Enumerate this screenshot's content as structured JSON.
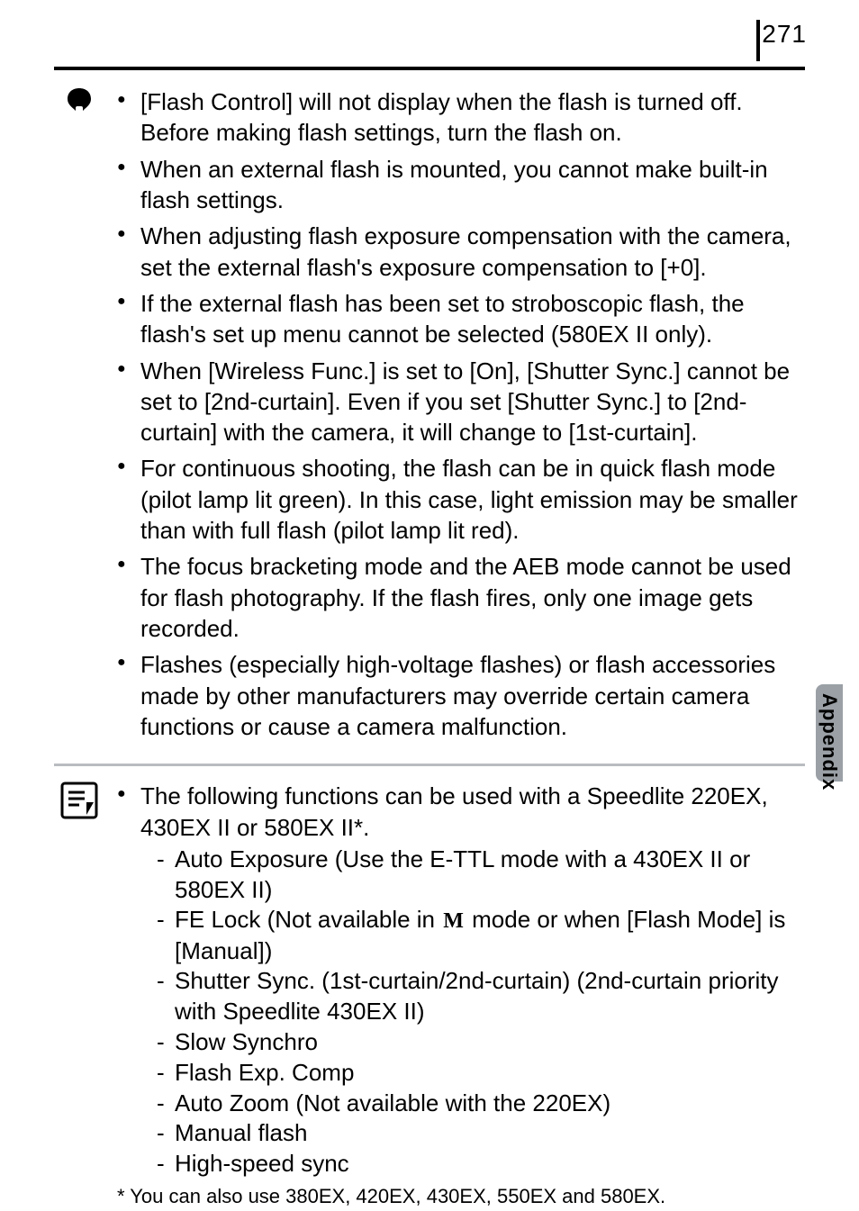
{
  "page_number": "271",
  "side_tab_label": "Appendix",
  "warning_bullets": [
    "[Flash Control] will not display when the flash is turned off. Before making flash settings, turn the flash on.",
    "When an external flash is mounted, you cannot make built-in flash settings.",
    "When adjusting flash exposure compensation with the camera, set the external flash's exposure compensation to [+0].",
    "If the external flash has been set to stroboscopic flash, the flash's set up menu cannot be selected (580EX II only).",
    "When [Wireless Func.] is set to [On], [Shutter Sync.] cannot be set to [2nd-curtain]. Even if you set [Shutter Sync.] to [2nd-curtain] with the camera, it will change to [1st-curtain].",
    "For continuous shooting, the flash can be in quick flash mode (pilot lamp lit green). In this case, light emission may be smaller than with full flash (pilot lamp lit red).",
    "The focus bracketing mode and the AEB mode cannot be used for flash photography. If the flash fires, only one image gets recorded.",
    "Flashes (especially high-voltage flashes) or flash accessories made by other manufacturers may override certain camera functions or cause a camera malfunction."
  ],
  "note_intro": "The following functions can be used with a Speedlite 220EX, 430EX II or 580EX II*.",
  "note_subs": [
    "Auto Exposure (Use the E-TTL mode with a 430EX II or 580EX II)",
    "FE Lock (Not available in |M| mode or when [Flash Mode] is [Manual])",
    "Shutter Sync. (1st-curtain/2nd-curtain) (2nd-curtain priority with Speedlite 430EX II)",
    "Slow Synchro",
    "Flash Exp. Comp",
    "Auto Zoom (Not available with the 220EX)",
    "Manual flash",
    "High-speed sync"
  ],
  "footnote": "*  You can also use 380EX, 420EX, 430EX, 550EX and 580EX.",
  "colors": {
    "tab_bg": "#9aa0a6",
    "separator": "#b9bcc0"
  }
}
